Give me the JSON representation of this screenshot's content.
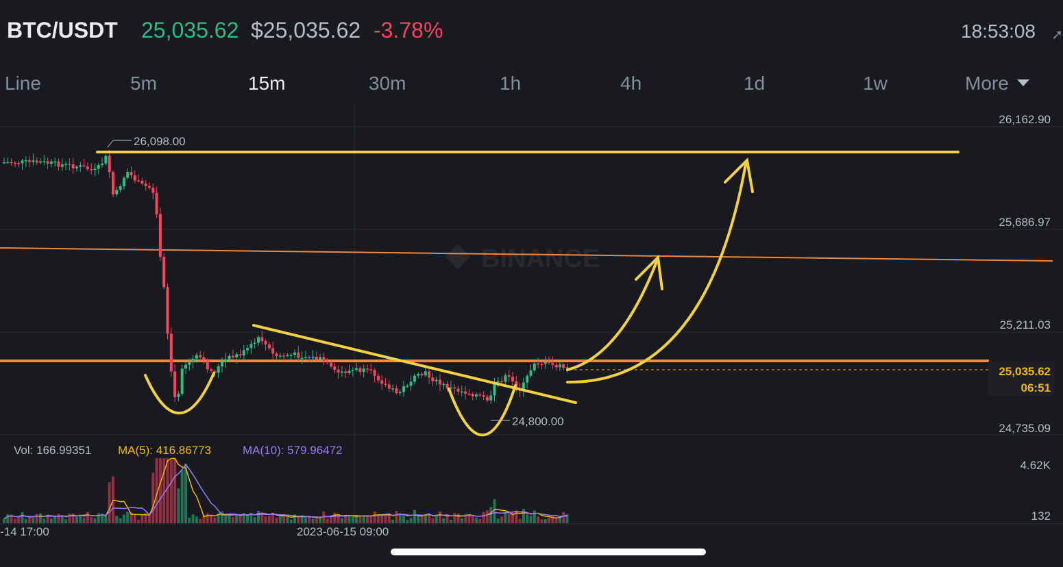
{
  "header": {
    "pair": "BTC/USDT",
    "last_price": "25,035.62",
    "usd_price": "$25,035.62",
    "change_pct": "-3.78%",
    "clock": "18:53:08"
  },
  "intervals": [
    {
      "label": "Line",
      "active": false
    },
    {
      "label": "5m",
      "active": false
    },
    {
      "label": "15m",
      "active": true
    },
    {
      "label": "30m",
      "active": false
    },
    {
      "label": "1h",
      "active": false
    },
    {
      "label": "4h",
      "active": false
    },
    {
      "label": "1d",
      "active": false
    },
    {
      "label": "1w",
      "active": false
    },
    {
      "label": "More",
      "active": false
    }
  ],
  "chart": {
    "watermark": "BINANCE",
    "price_axis": [
      "26,162.90",
      "25,686.97",
      "25,211.03",
      "24,735.09"
    ],
    "current_price_tag": "25,035.62",
    "countdown": "06:51",
    "high_label": "26,098.00",
    "low_label": "24,800.00",
    "time_axis": [
      "-14 17:00",
      "2023-06-15 09:00"
    ],
    "volume": {
      "vol_label": "Vol: 166.99351",
      "ma5_label": "MA(5): 416.86773",
      "ma10_label": "MA(10): 579.96472",
      "axis": [
        "4.62K",
        "132"
      ]
    }
  },
  "colors": {
    "background": "#181a20",
    "up": "#2ebd85",
    "down": "#f6465d",
    "annotation": "#f5d142",
    "resistance": "#f0883e",
    "ma5": "#f0b90b",
    "ma10": "#9c7cf4"
  },
  "icons": {
    "more_caret": "caret-down-icon",
    "edge": "arrow-icon",
    "watermark": "binance-logo-icon"
  }
}
